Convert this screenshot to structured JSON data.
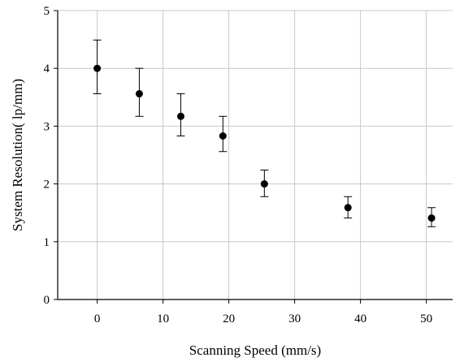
{
  "chart_data": {
    "type": "scatter",
    "title": "",
    "xlabel": "Scanning Speed (mm/s)",
    "ylabel": "System Resolution( lp/mm)",
    "xlim": [
      -6,
      54
    ],
    "ylim": [
      0,
      5
    ],
    "xticks": [
      0,
      10,
      20,
      30,
      40,
      50
    ],
    "yticks": [
      0,
      1,
      2,
      3,
      4,
      5
    ],
    "grid": true,
    "legend": "none",
    "series": [
      {
        "points": [
          {
            "x": 0,
            "y": 4.0,
            "y_lower": 3.56,
            "y_upper": 4.49
          },
          {
            "x": 6.4,
            "y": 3.56,
            "y_lower": 3.17,
            "y_upper": 4.0
          },
          {
            "x": 12.7,
            "y": 3.17,
            "y_lower": 2.83,
            "y_upper": 3.56
          },
          {
            "x": 19.1,
            "y": 2.83,
            "y_lower": 2.56,
            "y_upper": 3.17
          },
          {
            "x": 25.4,
            "y": 2.0,
            "y_lower": 1.78,
            "y_upper": 2.24
          },
          {
            "x": 38.1,
            "y": 1.59,
            "y_lower": 1.41,
            "y_upper": 1.78
          },
          {
            "x": 50.8,
            "y": 1.41,
            "y_lower": 1.26,
            "y_upper": 1.59
          }
        ]
      }
    ],
    "colors": {
      "marker": "#000000",
      "errorbar": "#000000",
      "grid": "#c8c8c8",
      "axis": "#000000"
    }
  }
}
